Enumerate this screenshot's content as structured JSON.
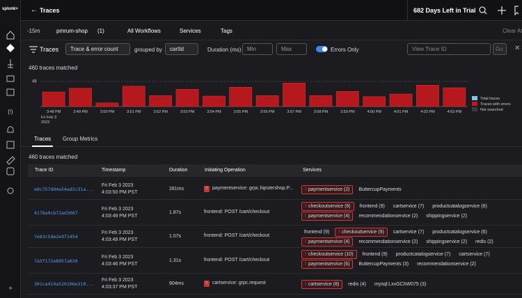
{
  "topbar": {
    "logo": "splunk>",
    "title": "Traces",
    "trial": "682 Days Left in Trial"
  },
  "filters": {
    "time": "-15m",
    "environment": "pmrum-shop",
    "env_count": "(1)",
    "workflows": "All Workflows",
    "services": "Services",
    "tags": "Tags",
    "clear": "Clear All"
  },
  "controls": {
    "heading": "Traces",
    "metric": "Trace & error count",
    "grouped_by": "grouped by",
    "group": "cartId",
    "duration": "Duration (ms)",
    "min": "Min",
    "max": "Max",
    "errors_only": "Errors Only",
    "trace_id_placeholder": "View Trace ID",
    "go": "Go"
  },
  "summary": "460 traces matched",
  "histogram": {
    "type": "bar",
    "categories": [
      "3:48 PM",
      "3:49 PM",
      "3:50 PM",
      "3:51 PM",
      "3:52 PM",
      "3:53 PM",
      "3:54 PM",
      "3:55 PM",
      "3:56 PM",
      "3:57 PM",
      "3:58 PM",
      "3:59 PM",
      "4:00 PM",
      "4:01 PM",
      "4:02 PM",
      "4:03 PM"
    ],
    "date_label": [
      "Fri Feb 3",
      "2023"
    ],
    "values": [
      28,
      35,
      7,
      39,
      21,
      33,
      20,
      37,
      21,
      45,
      21,
      29,
      19,
      24,
      41,
      36
    ],
    "color": "#b5191d",
    "ylim": [
      0,
      48
    ],
    "yticks": [
      48
    ],
    "grid": true,
    "legend": [
      {
        "name": "Total traces",
        "color": "#7cc7ef"
      },
      {
        "name": "Traces with errors",
        "color": "#c0181c"
      },
      {
        "name": "Not searched",
        "color": "#3a3a40"
      }
    ]
  },
  "tabs": [
    "Traces",
    "Group Metrics"
  ],
  "table_summary": "460 traces matched",
  "table": {
    "columns": [
      "Trace ID",
      "Timestamp",
      "Duration",
      "Initiating Operation",
      "Services"
    ],
    "rows": [
      {
        "id": "e0c757d94e54ad2c31a...",
        "date": "Fri Feb 3 2023",
        "time": "4:03:50 PM PST",
        "duration": "281ms",
        "operation": "paymentservice: grpc.hipstershop.P...",
        "op_error": true,
        "services": [
          [
            {
              "name": "paymentservice (2)",
              "error": true
            },
            {
              "name": "ButtercupPayments",
              "error": false
            }
          ]
        ]
      },
      {
        "id": "4176a9cb72ad3067",
        "date": "Fri Feb 3 2023",
        "time": "4:03:49 PM PST",
        "duration": "1.87s",
        "operation": "frontend: POST /cart/checkout",
        "op_error": false,
        "services": [
          [
            {
              "name": "checkoutservice (9)",
              "error": true
            },
            {
              "name": "frontend (9)",
              "error": false
            },
            {
              "name": "cartservice (7)",
              "error": false
            },
            {
              "name": "productcatalogservice (6)",
              "error": false
            }
          ],
          [
            {
              "name": "paymentservice (4)",
              "error": true
            },
            {
              "name": "recommendationservice (2)",
              "error": false
            },
            {
              "name": "shippingservice (2)",
              "error": false
            }
          ]
        ]
      },
      {
        "id": "7e83c5de2e971454",
        "date": "Fri Feb 3 2023",
        "time": "4:03:49 PM PST",
        "duration": "1.07s",
        "operation": "frontend: POST /cart/checkout",
        "op_error": false,
        "services": [
          [
            {
              "name": "frontend (9)",
              "error": false
            },
            {
              "name": "checkoutservice (9)",
              "error": true
            },
            {
              "name": "cartservice (7)",
              "error": false
            },
            {
              "name": "productcatalogservice (6)",
              "error": false
            }
          ],
          [
            {
              "name": "paymentservice (4)",
              "error": true
            },
            {
              "name": "recommendationservice (2)",
              "error": false
            },
            {
              "name": "shippingservice (2)",
              "error": false
            },
            {
              "name": "redis (2)",
              "error": false
            }
          ]
        ]
      },
      {
        "id": "7a5f172e8057a628",
        "date": "Fri Feb 3 2023",
        "time": "4:03:46 PM PST",
        "duration": "1.31s",
        "operation": "frontend: POST /cart/checkout",
        "op_error": false,
        "services": [
          [
            {
              "name": "checkoutservice (10)",
              "error": true
            },
            {
              "name": "frontend (9)",
              "error": false
            },
            {
              "name": "productcatalogservice (7)",
              "error": false
            },
            {
              "name": "cartservice (7)",
              "error": false
            }
          ],
          [
            {
              "name": "paymentservice (6)",
              "error": true
            },
            {
              "name": "ButtercupPayments (3)",
              "error": false
            },
            {
              "name": "recommendationservice (2)",
              "error": false
            }
          ]
        ]
      },
      {
        "id": "301ca419a520106e210...",
        "date": "Fri Feb 3 2023",
        "time": "4:03:37 PM PST",
        "duration": "904ms",
        "operation": "cartservice: grpc.request",
        "op_error": true,
        "services": [
          [
            {
              "name": "cartservice (8)",
              "error": true
            },
            {
              "name": "redis (4)",
              "error": false
            },
            {
              "name": "mysql:LxvGChW075 (3)",
              "error": false
            }
          ]
        ]
      }
    ]
  }
}
